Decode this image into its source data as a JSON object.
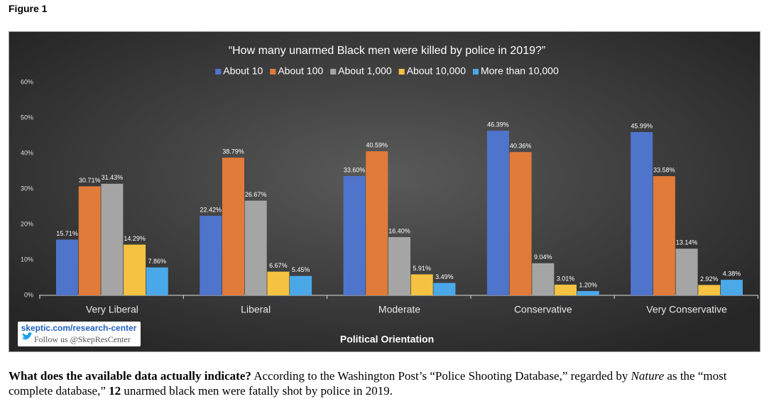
{
  "figure_label": "Figure 1",
  "chart_data": {
    "type": "bar",
    "title": "“How many unarmed Black men were killed by police in 2019?”",
    "x_label": "Political Orientation",
    "categories": [
      "Very Liberal",
      "Liberal",
      "Moderate",
      "Conservative",
      "Very Conservative"
    ],
    "series": [
      {
        "name": "About 10",
        "color": "#4f74cc",
        "values": [
          15.71,
          22.42,
          33.6,
          46.39,
          45.99
        ],
        "value_labels": [
          "15.71%",
          "22.42%",
          "33.60%",
          "46.39%",
          "45.99%"
        ]
      },
      {
        "name": "About 100",
        "color": "#e07b39",
        "values": [
          30.71,
          38.79,
          40.59,
          40.36,
          33.58
        ],
        "value_labels": [
          "30.71%",
          "38.79%",
          "40.59%",
          "40.36%",
          "33.58%"
        ]
      },
      {
        "name": "About 1,000",
        "color": "#a5a5a5",
        "values": [
          31.43,
          26.67,
          16.4,
          9.04,
          13.14
        ],
        "value_labels": [
          "31.43%",
          "26.67%",
          "16.40%",
          "9.04%",
          "13.14%"
        ]
      },
      {
        "name": "About 10,000",
        "color": "#f5c242",
        "values": [
          14.29,
          6.67,
          5.91,
          3.01,
          2.92
        ],
        "value_labels": [
          "14.29%",
          "6.67%",
          "5.91%",
          "3.01%",
          "2.92%"
        ]
      },
      {
        "name": "More than 10,000",
        "color": "#4aa8e8",
        "values": [
          7.86,
          5.45,
          3.49,
          1.2,
          4.38
        ],
        "value_labels": [
          "7.86%",
          "5.45%",
          "3.49%",
          "1.20%",
          "4.38%"
        ]
      }
    ],
    "ylim": [
      0,
      60
    ],
    "yticks": [
      {
        "value": 0,
        "label": "0%"
      },
      {
        "value": 10,
        "label": "10%"
      },
      {
        "value": 20,
        "label": "20%"
      },
      {
        "value": 30,
        "label": "30%"
      },
      {
        "value": 40,
        "label": "40%"
      },
      {
        "value": 50,
        "label": "50%"
      },
      {
        "value": 60,
        "label": "60%"
      }
    ],
    "legend": "top",
    "grid": false
  },
  "branding": {
    "site": "skeptic.com/research-center",
    "follow": "Follow us @SkepResCenter"
  },
  "caption": {
    "lead": "What does the available data actually indicate?",
    "part1": "According to the Washington Post’s “Police Shooting Database,” regarded by",
    "italic": "Nature",
    "part2": "as the “most complete database,”",
    "count": "12",
    "part3": "unarmed black men were fatally shot by police in 2019."
  }
}
